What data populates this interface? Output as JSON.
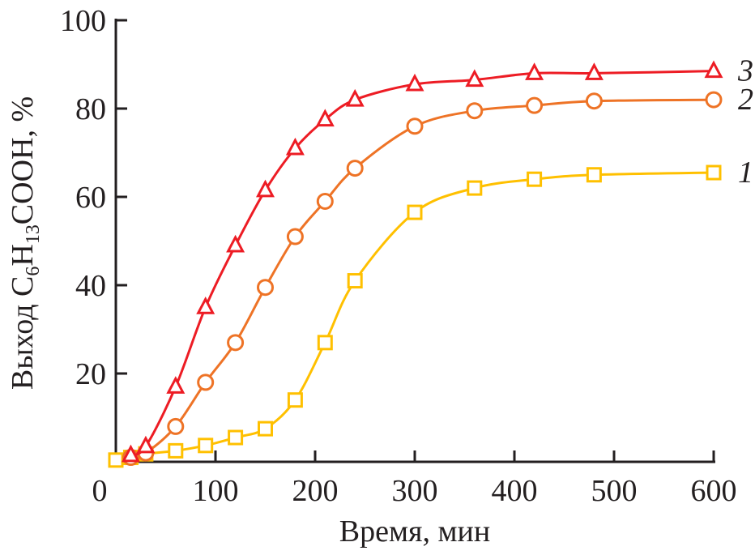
{
  "chart_data": {
    "type": "line",
    "title": "",
    "xlabel": "Время, мин",
    "ylabel_parts": {
      "a": "Выход C",
      "s1": "6",
      "b": "H",
      "s2": "13",
      "c": "COOH, %"
    },
    "xlim": [
      0,
      600
    ],
    "ylim": [
      0,
      100
    ],
    "xticks": [
      0,
      100,
      200,
      300,
      400,
      500,
      600
    ],
    "yticks": [
      20,
      40,
      60,
      80,
      100
    ],
    "grid": false,
    "series": [
      {
        "name": "1",
        "marker": "square",
        "color": "#ffc000",
        "x": [
          0,
          15,
          30,
          60,
          90,
          120,
          150,
          180,
          210,
          240,
          300,
          360,
          420,
          480,
          600
        ],
        "y": [
          0.4,
          1,
          1.8,
          2.5,
          3.7,
          5.5,
          7.5,
          14,
          27,
          41,
          56.5,
          62,
          64,
          65,
          65.5
        ]
      },
      {
        "name": "2",
        "marker": "circle",
        "color": "#ee7326",
        "x": [
          15,
          30,
          60,
          90,
          120,
          150,
          180,
          210,
          240,
          300,
          360,
          420,
          480,
          600
        ],
        "y": [
          1,
          2,
          8,
          18,
          27,
          39.5,
          51,
          59,
          66.5,
          76,
          79.5,
          80.7,
          81.7,
          82
        ]
      },
      {
        "name": "3",
        "marker": "triangle",
        "color": "#ed1c24",
        "x": [
          15,
          30,
          60,
          90,
          120,
          150,
          180,
          210,
          240,
          300,
          360,
          420,
          480,
          600
        ],
        "y": [
          1.5,
          3.5,
          17,
          35,
          49,
          61.5,
          71,
          77.5,
          82,
          85.5,
          86.5,
          88,
          88,
          88.5
        ]
      }
    ]
  }
}
